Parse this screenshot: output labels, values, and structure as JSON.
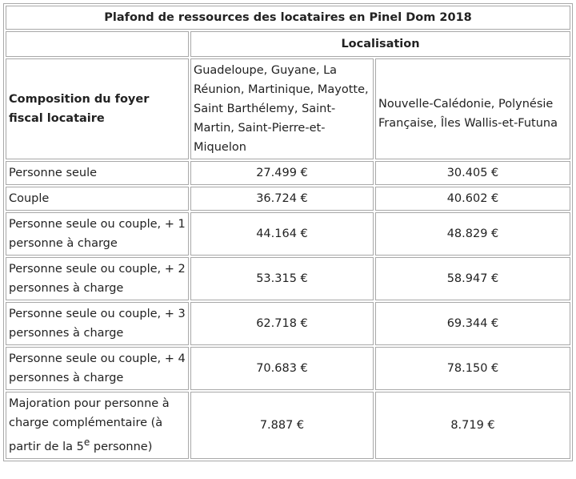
{
  "table": {
    "title": "Plafond de ressources des locataires en Pinel Dom 2018",
    "localisation_header": "Localisation",
    "composition_header": "Composition du foyer fiscal locataire",
    "regions": [
      "Guadeloupe, Guyane, La Réunion, Martinique, Mayotte, Saint Barthélemy, Saint-Martin, Saint-Pierre-et-Miquelon",
      "Nouvelle-Calédonie, Polynésie Française, Îles Wallis-et-Futuna"
    ],
    "rows": [
      {
        "label": "Personne seule",
        "v1": "27.499 €",
        "v2": "30.405 €"
      },
      {
        "label": "Couple",
        "v1": "36.724 €",
        "v2": "40.602 €"
      },
      {
        "label": "Personne seule ou couple, + 1 personne à charge",
        "v1": "44.164 €",
        "v2": "48.829 €"
      },
      {
        "label": "Personne seule ou couple, + 2 personnes à charge",
        "v1": "53.315 €",
        "v2": "58.947 €"
      },
      {
        "label": "Personne seule ou couple, + 3 personnes à charge",
        "v1": "62.718 €",
        "v2": "69.344 €"
      },
      {
        "label": "Personne seule ou couple, + 4 personnes à charge",
        "v1": "70.683 €",
        "v2": "78.150 €"
      }
    ],
    "majoration": {
      "label_before": "Majoration pour personne à charge complémentaire (à partir de la 5",
      "label_sup": "e",
      "label_after": " personne)",
      "v1": "7.887 €",
      "v2": "8.719 €"
    }
  }
}
